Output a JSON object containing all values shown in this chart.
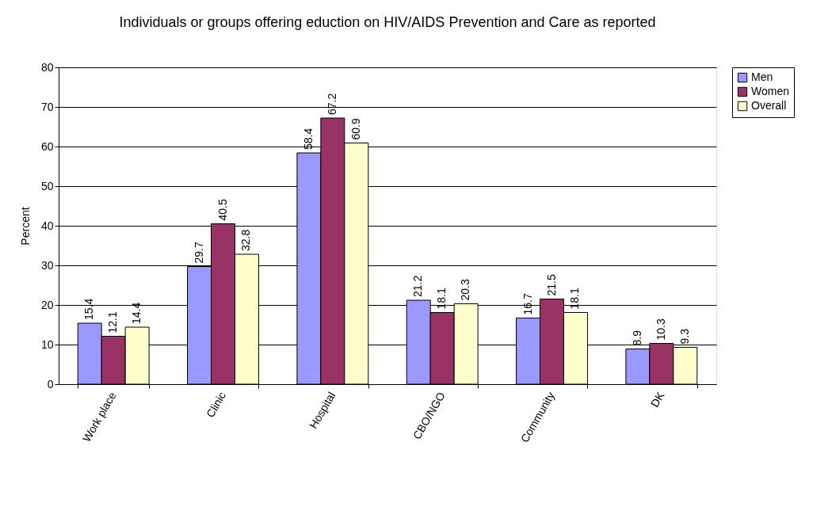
{
  "chart_data": {
    "type": "bar",
    "title": "Individuals or groups offering eduction on HIV/AIDS Prevention and Care as reported",
    "ylabel": "Percent",
    "categories": [
      "Work place",
      "Clinic",
      "Hospital",
      "CBO/NGO",
      "Community",
      "DK"
    ],
    "series": [
      {
        "name": "Men",
        "color": "#9999ff",
        "values": [
          15.4,
          29.7,
          58.4,
          21.2,
          16.7,
          8.9
        ]
      },
      {
        "name": "Women",
        "color": "#993366",
        "values": [
          12.1,
          40.5,
          67.2,
          18.1,
          21.5,
          10.3
        ]
      },
      {
        "name": "Overall",
        "color": "#ffffcc",
        "values": [
          14.4,
          32.8,
          60.9,
          20.3,
          18.1,
          9.3
        ]
      }
    ],
    "ylim": [
      0,
      80
    ],
    "yticks": [
      0,
      10,
      20,
      30,
      40,
      50,
      60,
      70,
      80
    ],
    "grid": "y",
    "legend": "right",
    "data_labels": true
  }
}
